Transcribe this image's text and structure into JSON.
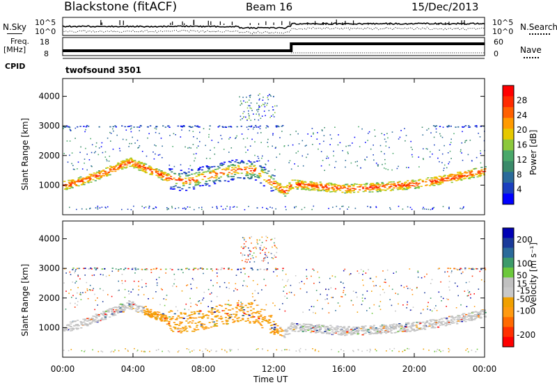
{
  "header": {
    "station": "Blackstone (fitACF)",
    "beam": "Beam 16",
    "date": "15/Dec/2013"
  },
  "top_panels": {
    "nsky_label": "N.Sky",
    "nsearch_label": "N.Search",
    "log_ticks": [
      "10^5",
      "10^0"
    ],
    "freq_label_1": "Freq.",
    "freq_label_2": "[MHz]",
    "freq_ticks": [
      "18",
      "8"
    ],
    "nave_label": "Nave",
    "nave_ticks": [
      "60",
      "0"
    ],
    "cpid_label": "CPID",
    "cpid_value": "twofsound 3501"
  },
  "colors": {
    "power": [
      "#0000ff",
      "#1a3fbf",
      "#2a6a9a",
      "#3a8a6a",
      "#4aa86a",
      "#8cc83c",
      "#e6c800",
      "#ff9a00",
      "#ff6000",
      "#ff2a00",
      "#ff0000"
    ],
    "velocity": [
      "#ff0000",
      "#ff3000",
      "#ff6a00",
      "#ff9a10",
      "#f0a000",
      "#c8c8c8",
      "#c0c0c0",
      "#6cc83c",
      "#3c9a6a",
      "#2a6a9a",
      "#1a3a9a",
      "#0000b4"
    ]
  },
  "chart_data": [
    {
      "type": "heatmap",
      "name": "power",
      "title": "",
      "xlabel": "Time UT",
      "ylabel": "Slant Range [km]",
      "x_ticks": [
        "00:00",
        "04:00",
        "08:00",
        "12:00",
        "16:00",
        "20:00",
        "00:00"
      ],
      "xlim": [
        0,
        24
      ],
      "ylim": [
        0,
        4600
      ],
      "y_ticks": [
        1000,
        2000,
        3000,
        4000
      ],
      "colorbar": {
        "label": "Power [dB]",
        "ticks": [
          4,
          8,
          12,
          16,
          20,
          24,
          28
        ],
        "range": [
          0,
          32
        ]
      },
      "main_band_range_km": [
        [
          0,
          1000
        ],
        [
          1,
          1150
        ],
        [
          2,
          1350
        ],
        [
          3,
          1600
        ],
        [
          3.8,
          1800
        ],
        [
          5,
          1500
        ],
        [
          6,
          1250
        ],
        [
          7,
          1150
        ],
        [
          8,
          1300
        ],
        [
          9,
          1450
        ],
        [
          10,
          1550
        ],
        [
          11,
          1500
        ],
        [
          12,
          1050
        ],
        [
          12.6,
          800
        ],
        [
          13,
          1050
        ],
        [
          14,
          1000
        ],
        [
          16,
          900
        ],
        [
          18,
          950
        ],
        [
          20,
          1050
        ],
        [
          22,
          1250
        ],
        [
          24,
          1500
        ]
      ],
      "persistent_echo_range_km": 3000,
      "near_range_echo_km": 250
    },
    {
      "type": "heatmap",
      "name": "velocity",
      "title": "",
      "xlabel": "Time UT",
      "ylabel": "Slant Range [km]",
      "x_ticks": [
        "00:00",
        "04:00",
        "08:00",
        "12:00",
        "16:00",
        "20:00",
        "00:00"
      ],
      "xlim": [
        0,
        24
      ],
      "ylim": [
        0,
        4600
      ],
      "y_ticks": [
        1000,
        2000,
        3000,
        4000
      ],
      "colorbar": {
        "label": "Velocity [m s⁻¹]",
        "ticks": [
          200,
          100,
          50,
          15,
          -15,
          -50,
          -100,
          -200
        ],
        "range": [
          -250,
          250
        ]
      }
    }
  ]
}
